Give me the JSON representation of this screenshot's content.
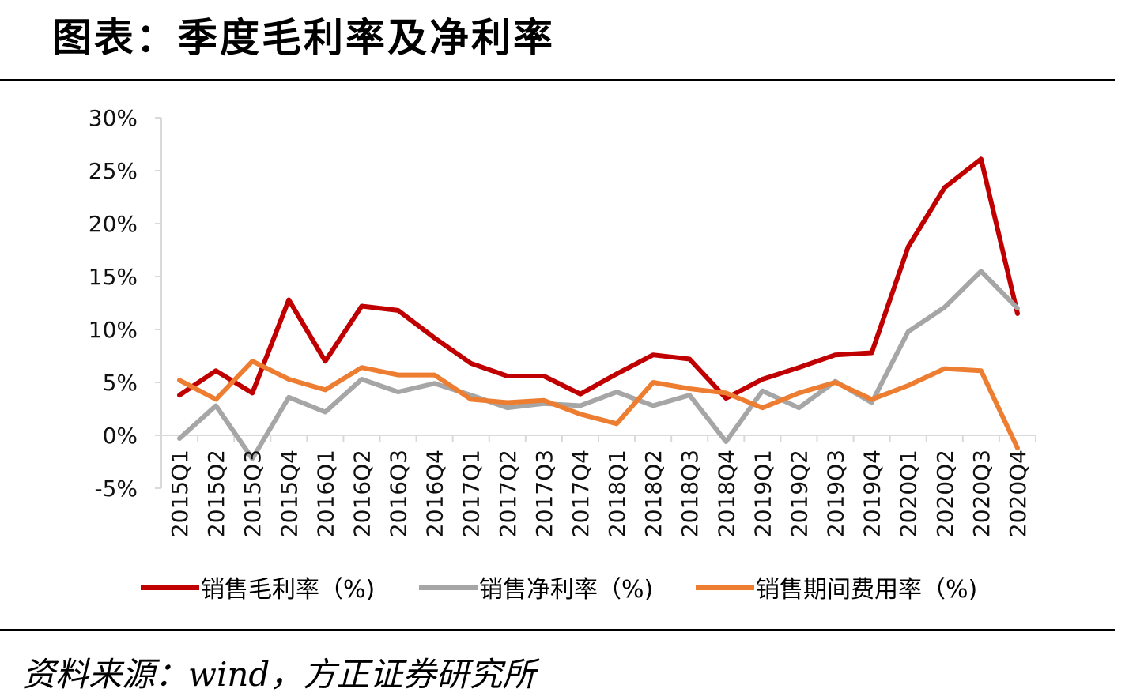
{
  "header": {
    "title": "图表：季度毛利率及净利率"
  },
  "footer": {
    "source": "资料来源：wind，方正证券研究所"
  },
  "chart_data": {
    "type": "line",
    "categories": [
      "2015Q1",
      "2015Q2",
      "2015Q3",
      "2015Q4",
      "2016Q1",
      "2016Q2",
      "2016Q3",
      "2016Q4",
      "2017Q1",
      "2017Q2",
      "2017Q3",
      "2017Q4",
      "2018Q1",
      "2018Q2",
      "2018Q3",
      "2018Q4",
      "2019Q1",
      "2019Q2",
      "2019Q3",
      "2019Q4",
      "2020Q1",
      "2020Q2",
      "2020Q3",
      "2020Q4"
    ],
    "series": [
      {
        "name": "销售毛利率（%)",
        "color": "#C00000",
        "values": [
          3.8,
          6.1,
          4.0,
          12.8,
          7.0,
          12.2,
          11.8,
          9.2,
          6.8,
          5.6,
          5.6,
          3.9,
          5.8,
          7.6,
          7.2,
          3.5,
          5.3,
          6.4,
          7.6,
          7.8,
          17.8,
          23.4,
          26.1,
          11.5
        ]
      },
      {
        "name": "销售净利率（%)",
        "color": "#A6A6A6",
        "values": [
          -0.3,
          2.8,
          -2.2,
          3.6,
          2.2,
          5.3,
          4.1,
          4.9,
          3.8,
          2.6,
          3.0,
          2.8,
          4.1,
          2.8,
          3.8,
          -0.6,
          4.2,
          2.6,
          5.1,
          3.1,
          9.8,
          12.1,
          15.5,
          12.0
        ]
      },
      {
        "name": "销售期间费用率（%)",
        "color": "#ED7D31",
        "values": [
          5.2,
          3.4,
          7.0,
          5.3,
          4.3,
          6.4,
          5.7,
          5.7,
          3.4,
          3.1,
          3.3,
          2.0,
          1.1,
          5.0,
          4.4,
          4.0,
          2.6,
          4.0,
          5.0,
          3.4,
          4.7,
          6.3,
          6.1,
          -1.2
        ]
      }
    ],
    "ylim": [
      -5,
      30
    ],
    "yticks": [
      -5,
      0,
      5,
      10,
      15,
      20,
      25,
      30
    ],
    "ytick_labels": [
      "-5%",
      "0%",
      "5%",
      "10%",
      "15%",
      "20%",
      "25%",
      "30%"
    ],
    "legend_position": "bottom",
    "grid": false
  }
}
